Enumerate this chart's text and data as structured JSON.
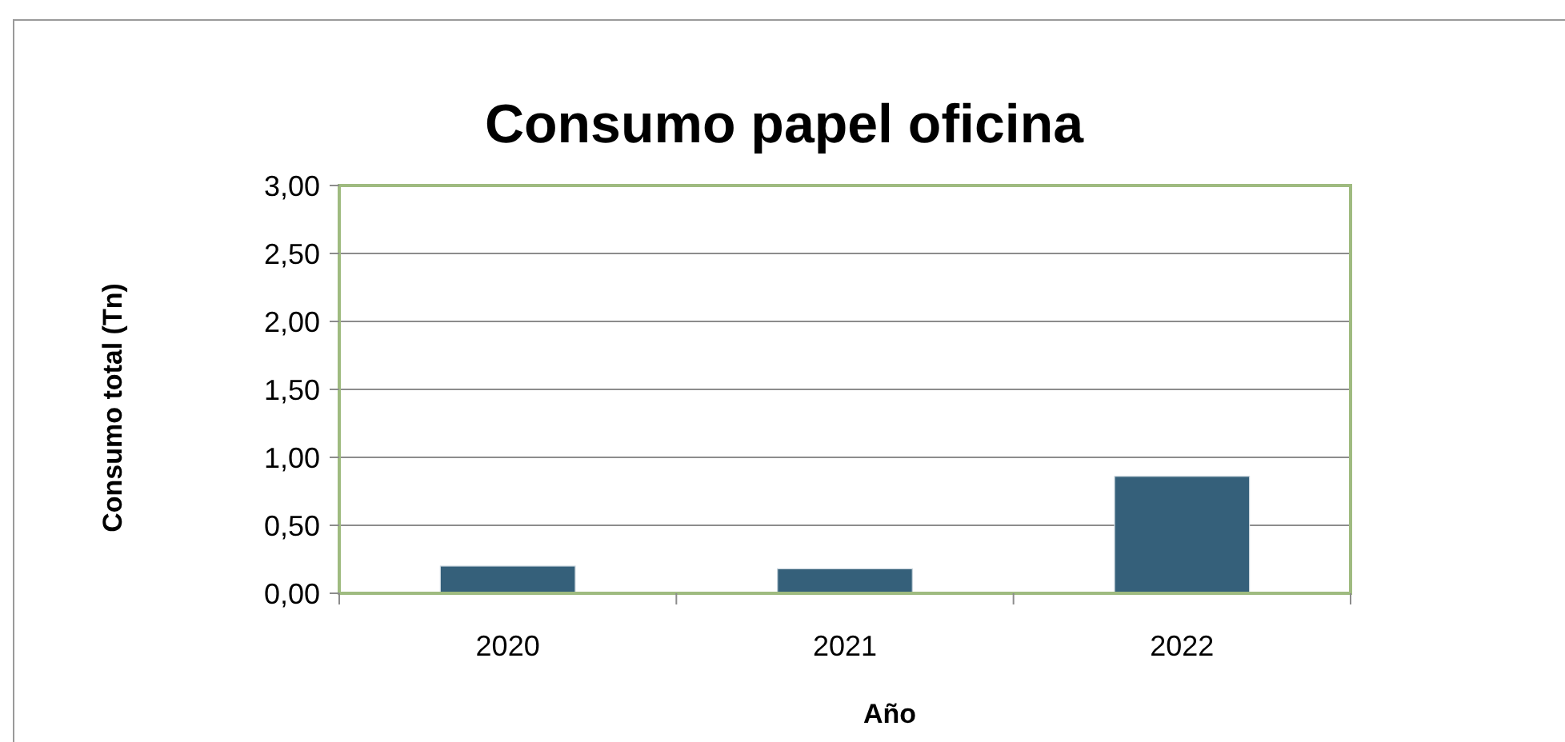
{
  "chart_data": {
    "type": "bar",
    "title": "Consumo papel oficina",
    "xlabel": "Año",
    "ylabel": "Consumo total (Tn)",
    "categories": [
      "2020",
      "2021",
      "2022"
    ],
    "values": [
      0.2,
      0.18,
      0.86
    ],
    "color": "#35607a",
    "ylim": [
      0,
      3
    ],
    "yticks": [
      {
        "value": 0,
        "label": "0,00"
      },
      {
        "value": 0.5,
        "label": "0,50"
      },
      {
        "value": 1,
        "label": "1,00"
      },
      {
        "value": 1.5,
        "label": "1,50"
      },
      {
        "value": 2,
        "label": "2,00"
      },
      {
        "value": 2.5,
        "label": "2,50"
      },
      {
        "value": 3,
        "label": "3,00"
      }
    ],
    "grid": "y"
  }
}
